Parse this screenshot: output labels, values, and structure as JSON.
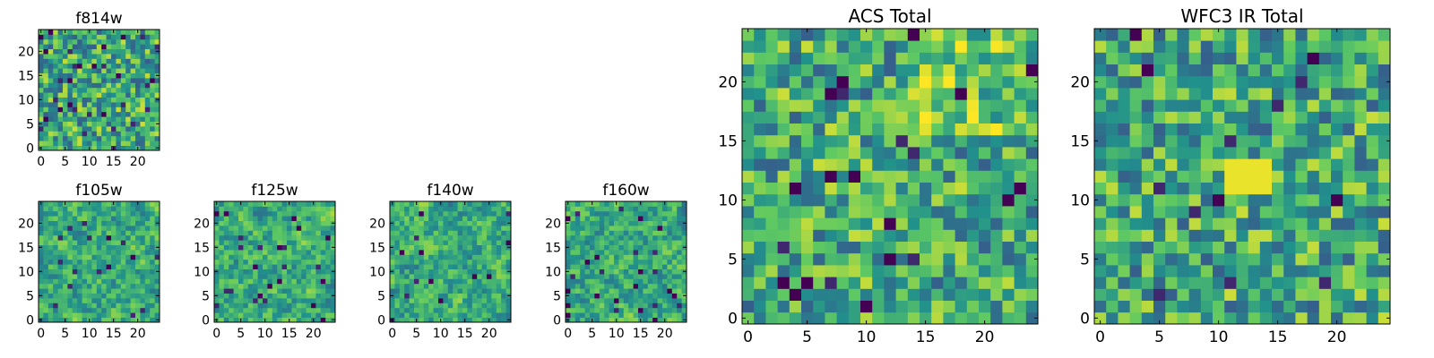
{
  "colors": {
    "colormap": [
      "#440154",
      "#3b528b",
      "#21918c",
      "#5ec962",
      "#fde725"
    ],
    "frame": "#000000",
    "background": "#ffffff"
  },
  "chart_data": [
    {
      "id": "f814w",
      "type": "heatmap",
      "title": "f814w",
      "grid_size": 25,
      "cmap": "viridis",
      "seed": 11,
      "smooth": 0,
      "dark_fraction": 0.05,
      "bright_bias": 0.0,
      "xticks": [
        0,
        5,
        10,
        15,
        20
      ],
      "yticks": [
        0,
        5,
        10,
        15,
        20
      ],
      "xlim": [
        -0.5,
        24.5
      ],
      "ylim": [
        -0.5,
        24.5
      ]
    },
    {
      "id": "f105w",
      "type": "heatmap",
      "title": "f105w",
      "grid_size": 25,
      "cmap": "viridis",
      "seed": 23,
      "smooth": 1,
      "dark_fraction": 0.03,
      "bright_bias": 0.0,
      "xticks": [
        0,
        5,
        10,
        15,
        20
      ],
      "yticks": [
        0,
        5,
        10,
        15,
        20
      ],
      "xlim": [
        -0.5,
        24.5
      ],
      "ylim": [
        -0.5,
        24.5
      ]
    },
    {
      "id": "f125w",
      "type": "heatmap",
      "title": "f125w",
      "grid_size": 25,
      "cmap": "viridis",
      "seed": 37,
      "smooth": 1,
      "dark_fraction": 0.03,
      "bright_bias": 0.0,
      "xticks": [
        0,
        5,
        10,
        15,
        20
      ],
      "yticks": [
        0,
        5,
        10,
        15,
        20
      ],
      "xlim": [
        -0.5,
        24.5
      ],
      "ylim": [
        -0.5,
        24.5
      ]
    },
    {
      "id": "f140w",
      "type": "heatmap",
      "title": "f140w",
      "grid_size": 25,
      "cmap": "viridis",
      "seed": 41,
      "smooth": 1,
      "dark_fraction": 0.03,
      "bright_bias": 0.0,
      "xticks": [
        0,
        5,
        10,
        15,
        20
      ],
      "yticks": [
        0,
        5,
        10,
        15,
        20
      ],
      "xlim": [
        -0.5,
        24.5
      ],
      "ylim": [
        -0.5,
        24.5
      ]
    },
    {
      "id": "f160w",
      "type": "heatmap",
      "title": "f160w",
      "grid_size": 25,
      "cmap": "viridis",
      "seed": 53,
      "smooth": 1,
      "dark_fraction": 0.03,
      "bright_bias": 0.0,
      "xticks": [
        0,
        5,
        10,
        15,
        20
      ],
      "yticks": [
        0,
        5,
        10,
        15,
        20
      ],
      "xlim": [
        -0.5,
        24.5
      ],
      "ylim": [
        -0.5,
        24.5
      ]
    },
    {
      "id": "acs-total",
      "type": "heatmap",
      "title": "ACS Total",
      "grid_size": 25,
      "cmap": "viridis",
      "seed": 71,
      "smooth": 0,
      "dark_fraction": 0.035,
      "bright_bias": 0.15,
      "xticks": [
        0,
        5,
        10,
        15,
        20
      ],
      "yticks": [
        0,
        5,
        10,
        15,
        20
      ],
      "xlim": [
        -0.5,
        24.5
      ],
      "ylim": [
        -0.5,
        24.5
      ]
    },
    {
      "id": "wfc3-ir-total",
      "type": "heatmap",
      "title": "WFC3 IR Total",
      "grid_size": 25,
      "cmap": "viridis",
      "seed": 89,
      "smooth": 0,
      "dark_fraction": 0.02,
      "bright_bias": 0.0,
      "bright_block": {
        "x0": 11,
        "x1": 14,
        "y0": 11,
        "y1": 13
      },
      "xticks": [
        0,
        5,
        10,
        15,
        20
      ],
      "yticks": [
        0,
        5,
        10,
        15,
        20
      ],
      "xlim": [
        -0.5,
        24.5
      ],
      "ylim": [
        -0.5,
        24.5
      ]
    }
  ]
}
